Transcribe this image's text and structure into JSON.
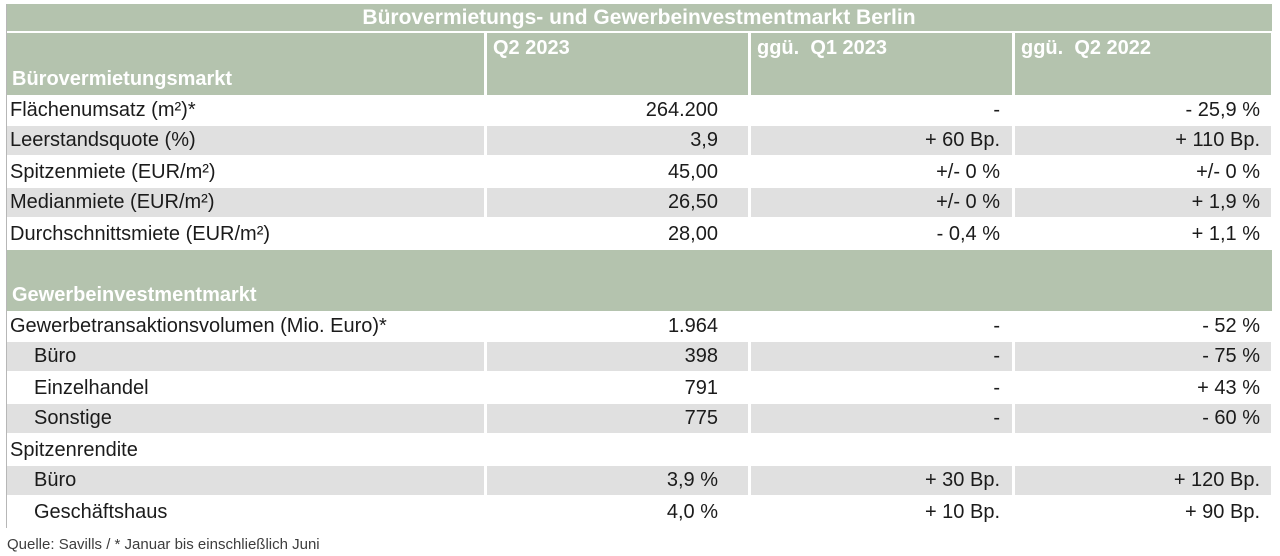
{
  "title": "Bürovermietungs- und Gewerbeinvestmentmarkt Berlin",
  "columns": {
    "q2_2023": "Q2 2023",
    "vs_q1_2023": "ggü.  Q1 2023",
    "vs_q2_2022": "ggü.  Q2 2022"
  },
  "table": {
    "sections": [
      {
        "heading": "Bürovermietungsmarkt",
        "rows": [
          {
            "label": "Flächenumsatz (m²)*",
            "value": "264.200",
            "vs_q1": "-",
            "vs_q2": "- 25,9 %"
          },
          {
            "label": "Leerstandsquote (%)",
            "value": "3,9",
            "vs_q1": "+ 60 Bp.",
            "vs_q2": "+ 110 Bp."
          },
          {
            "label": "Spitzenmiete (EUR/m²)",
            "value": "45,00",
            "vs_q1": "+/- 0 %",
            "vs_q2": "+/- 0 %"
          },
          {
            "label": "Medianmiete (EUR/m²)",
            "value": "26,50",
            "vs_q1": "+/- 0 %",
            "vs_q2": "+ 1,9 %"
          },
          {
            "label": "Durchschnittsmiete (EUR/m²)",
            "value": "28,00",
            "vs_q1": "- 0,4 %",
            "vs_q2": "+ 1,1 %"
          }
        ]
      },
      {
        "heading": "Gewerbeinvestmentmarkt",
        "rows": [
          {
            "label": "Gewerbetransaktionsvolumen (Mio. Euro)*",
            "value": "1.964",
            "vs_q1": "-",
            "vs_q2": "- 52 %"
          },
          {
            "label": "Büro",
            "value": "398",
            "vs_q1": "-",
            "vs_q2": "- 75 %"
          },
          {
            "label": "Einzelhandel",
            "value": "791",
            "vs_q1": "-",
            "vs_q2": "+ 43 %"
          },
          {
            "label": "Sonstige",
            "value": "775",
            "vs_q1": "-",
            "vs_q2": "- 60 %"
          },
          {
            "label": "Spitzenrendite",
            "value": "",
            "vs_q1": "",
            "vs_q2": ""
          },
          {
            "label": "Büro",
            "value": "3,9 %",
            "vs_q1": "+ 30 Bp.",
            "vs_q2": "+ 120 Bp."
          },
          {
            "label": "Geschäftshaus",
            "value": "4,0 %",
            "vs_q1": "+ 10 Bp.",
            "vs_q2": "+ 90 Bp."
          }
        ]
      }
    ]
  },
  "footer": "Quelle: Savills / * Januar bis einschließlich Juni",
  "colors": {
    "header_green": "#b4c3ae",
    "row_gray": "#e0e0e0",
    "text_dark": "#1b1b1b",
    "header_text": "#ffffff"
  },
  "chart_data": {
    "type": "table",
    "title": "Bürovermietungs- und Gewerbeinvestmentmarkt Berlin",
    "columns": [
      "",
      "Q2 2023",
      "ggü. Q1 2023",
      "ggü. Q2 2022"
    ],
    "sections": [
      {
        "name": "Bürovermietungsmarkt",
        "rows": [
          [
            "Flächenumsatz (m²)*",
            "264.200",
            "-",
            "- 25,9 %"
          ],
          [
            "Leerstandsquote (%)",
            "3,9",
            "+ 60 Bp.",
            "+ 110 Bp."
          ],
          [
            "Spitzenmiete (EUR/m²)",
            "45,00",
            "+/- 0 %",
            "+/- 0 %"
          ],
          [
            "Medianmiete (EUR/m²)",
            "26,50",
            "+/- 0 %",
            "+ 1,9 %"
          ],
          [
            "Durchschnittsmiete (EUR/m²)",
            "28,00",
            "- 0,4 %",
            "+ 1,1 %"
          ]
        ]
      },
      {
        "name": "Gewerbeinvestmentmarkt",
        "rows": [
          [
            "Gewerbetransaktionsvolumen (Mio. Euro)*",
            "1.964",
            "-",
            "- 52 %"
          ],
          [
            "Büro",
            "398",
            "-",
            "- 75 %"
          ],
          [
            "Einzelhandel",
            "791",
            "-",
            "+ 43 %"
          ],
          [
            "Sonstige",
            "775",
            "-",
            "- 60 %"
          ],
          [
            "Spitzenrendite",
            "",
            "",
            ""
          ],
          [
            "Büro",
            "3,9 %",
            "+ 30 Bp.",
            "+ 120 Bp."
          ],
          [
            "Geschäftshaus",
            "4,0 %",
            "+ 10 Bp.",
            "+ 90 Bp."
          ]
        ]
      }
    ],
    "source": "Quelle: Savills / * Januar bis einschließlich Juni"
  }
}
